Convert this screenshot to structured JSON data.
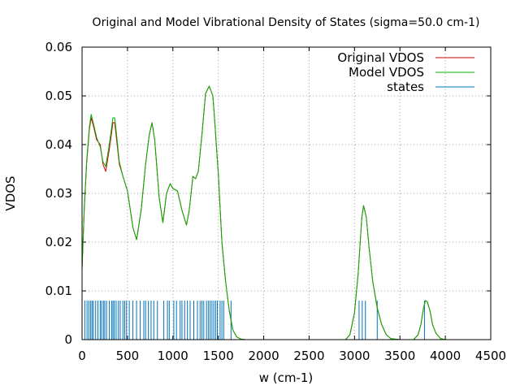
{
  "chart_data": {
    "type": "line",
    "title": "Original and Model Vibrational Density of States (sigma=50.0 cm-1)",
    "xlabel": "w (cm-1)",
    "ylabel": "VDOS",
    "xlim": [
      0,
      4500
    ],
    "ylim": [
      0,
      0.06
    ],
    "x_ticks": [
      "0",
      "500",
      "1000",
      "1500",
      "2000",
      "2500",
      "3000",
      "3500",
      "4000",
      "4500"
    ],
    "y_ticks": [
      "0",
      "0.01",
      "0.02",
      "0.03",
      "0.04",
      "0.05",
      "0.06"
    ],
    "grid": true,
    "legend_position": "top-right",
    "series": [
      {
        "name": "Original VDOS",
        "color": "#d40000",
        "x": [
          0,
          25,
          50,
          80,
          100,
          130,
          160,
          200,
          230,
          260,
          300,
          340,
          360,
          380,
          410,
          450,
          500,
          560,
          600,
          650,
          700,
          740,
          770,
          800,
          850,
          890,
          930,
          970,
          1000,
          1050,
          1100,
          1150,
          1180,
          1220,
          1250,
          1280,
          1320,
          1360,
          1400,
          1440,
          1460,
          1500,
          1540,
          1580,
          1620,
          1660,
          1700,
          1750,
          1800,
          1850,
          1900,
          2000,
          2500,
          2900,
          2950,
          3000,
          3040,
          3080,
          3100,
          3130,
          3160,
          3200,
          3250,
          3300,
          3350,
          3400,
          3500,
          3650,
          3700,
          3730,
          3760,
          3780,
          3800,
          3830,
          3860,
          3900,
          3950,
          4000,
          4500
        ],
        "y": [
          0.0145,
          0.027,
          0.036,
          0.043,
          0.0455,
          0.0435,
          0.041,
          0.04,
          0.036,
          0.0345,
          0.039,
          0.0445,
          0.0445,
          0.041,
          0.036,
          0.0335,
          0.0305,
          0.023,
          0.0205,
          0.0265,
          0.036,
          0.042,
          0.0445,
          0.041,
          0.029,
          0.024,
          0.03,
          0.032,
          0.031,
          0.0305,
          0.0265,
          0.0235,
          0.0265,
          0.0335,
          0.033,
          0.0345,
          0.042,
          0.0505,
          0.052,
          0.05,
          0.045,
          0.034,
          0.02,
          0.012,
          0.006,
          0.002,
          0.0006,
          0.0001,
          0,
          0,
          0,
          0,
          0,
          0,
          0.001,
          0.0055,
          0.0135,
          0.025,
          0.0275,
          0.025,
          0.019,
          0.012,
          0.0065,
          0.003,
          0.001,
          0.0002,
          0,
          0,
          0.001,
          0.003,
          0.0065,
          0.008,
          0.0078,
          0.006,
          0.003,
          0.0012,
          0.0002,
          0,
          0
        ]
      },
      {
        "name": "Model VDOS",
        "color": "#00b000",
        "x": [
          0,
          25,
          50,
          80,
          100,
          130,
          160,
          200,
          230,
          260,
          300,
          340,
          360,
          380,
          410,
          450,
          500,
          560,
          600,
          650,
          700,
          740,
          770,
          800,
          850,
          890,
          930,
          970,
          1000,
          1050,
          1100,
          1150,
          1180,
          1220,
          1250,
          1280,
          1320,
          1360,
          1400,
          1440,
          1460,
          1500,
          1540,
          1580,
          1620,
          1660,
          1700,
          1750,
          1800,
          1850,
          1900,
          2000,
          2500,
          2900,
          2950,
          3000,
          3040,
          3080,
          3100,
          3130,
          3160,
          3200,
          3250,
          3300,
          3350,
          3400,
          3500,
          3650,
          3700,
          3730,
          3760,
          3780,
          3800,
          3830,
          3860,
          3900,
          3950,
          4000,
          4500
        ],
        "y": [
          0.0145,
          0.0275,
          0.0365,
          0.0435,
          0.0462,
          0.044,
          0.0415,
          0.0395,
          0.0365,
          0.0355,
          0.04,
          0.0455,
          0.0455,
          0.042,
          0.0365,
          0.0335,
          0.0305,
          0.023,
          0.0205,
          0.0265,
          0.036,
          0.042,
          0.0445,
          0.041,
          0.029,
          0.024,
          0.03,
          0.032,
          0.031,
          0.0305,
          0.0265,
          0.0235,
          0.0265,
          0.0335,
          0.033,
          0.0345,
          0.042,
          0.0505,
          0.052,
          0.05,
          0.045,
          0.034,
          0.02,
          0.012,
          0.006,
          0.002,
          0.0006,
          0.0001,
          0,
          0,
          0,
          0,
          0,
          0,
          0.001,
          0.0055,
          0.0135,
          0.025,
          0.0275,
          0.025,
          0.019,
          0.012,
          0.0065,
          0.003,
          0.001,
          0.0002,
          0,
          0,
          0.001,
          0.003,
          0.0065,
          0.008,
          0.0078,
          0.006,
          0.003,
          0.0012,
          0.0002,
          0,
          0
        ]
      },
      {
        "name": "states",
        "type": "impulses",
        "color": "#0072bd",
        "height": 0.008,
        "x": [
          30,
          55,
          75,
          95,
          110,
          125,
          150,
          175,
          200,
          215,
          235,
          250,
          270,
          300,
          325,
          340,
          355,
          375,
          400,
          420,
          450,
          470,
          490,
          520,
          560,
          600,
          640,
          680,
          700,
          730,
          760,
          790,
          830,
          900,
          940,
          960,
          1010,
          1040,
          1080,
          1100,
          1130,
          1160,
          1190,
          1230,
          1270,
          1300,
          1320,
          1340,
          1370,
          1390,
          1410,
          1430,
          1450,
          1470,
          1490,
          1520,
          1540,
          1560,
          1640,
          3050,
          3085,
          3120,
          3250,
          3770
        ]
      }
    ]
  }
}
